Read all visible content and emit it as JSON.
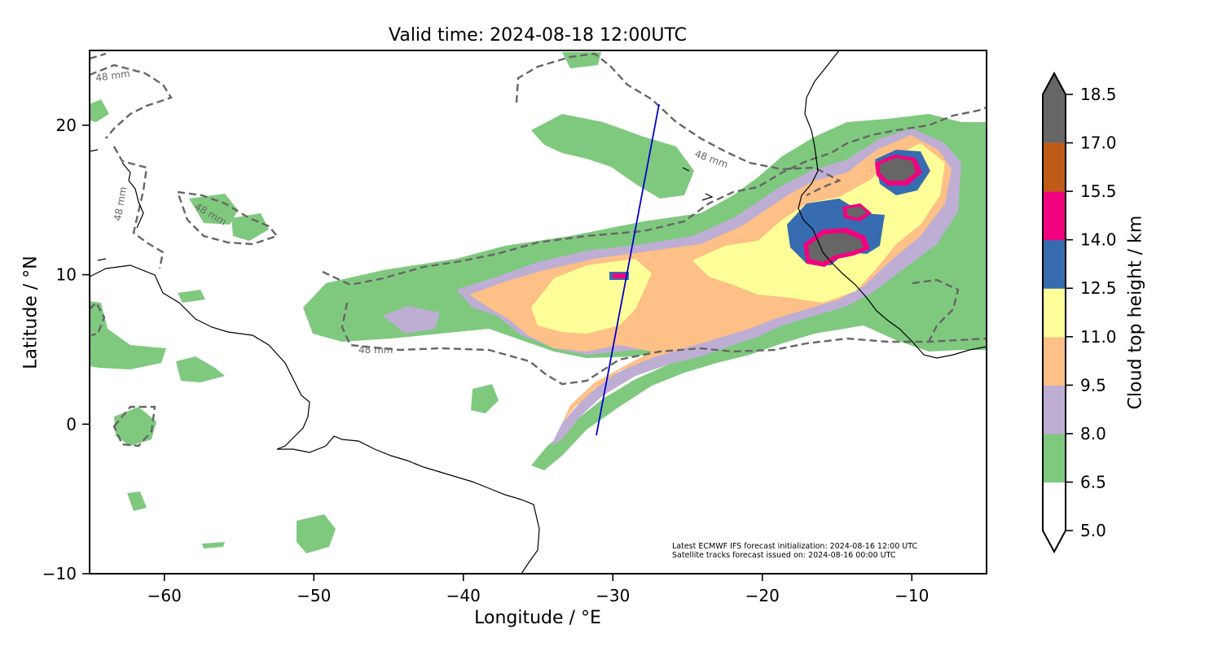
{
  "title": "Valid time: 2024-08-18 12:00UTC",
  "xlabel": "Longitude / °E",
  "ylabel": "Latitude / °N",
  "colorbar_label": "Cloud top height / km",
  "notes": {
    "line1": "Latest ECMWF IFS forecast initialization: 2024-08-16 12:00 UTC",
    "line2": "Satellite tracks forecast issued on: 2024-08-16 00:00 UTC"
  },
  "contour_label": "48 mm",
  "chart_data": {
    "type": "map",
    "title": "Valid time: 2024-08-18 12:00UTC",
    "xlabel": "Longitude / °E",
    "ylabel": "Latitude / °N",
    "xlim": [
      -65,
      -5
    ],
    "ylim": [
      -10,
      25
    ],
    "xticks": [
      -60,
      -50,
      -40,
      -30,
      -20,
      -10
    ],
    "yticks": [
      -10,
      0,
      10,
      20
    ],
    "xtick_labels": [
      "−60",
      "−50",
      "−40",
      "−30",
      "−20",
      "−10"
    ],
    "ytick_labels": [
      "−10",
      "0",
      "10",
      "20"
    ],
    "colorbar": {
      "label": "Cloud top height / km",
      "levels": [
        5.0,
        6.5,
        8.0,
        9.5,
        11.0,
        12.5,
        14.0,
        15.5,
        17.0,
        18.5
      ],
      "tick_labels": [
        "5.0",
        "6.5",
        "8.0",
        "9.5",
        "11.0",
        "12.5",
        "14.0",
        "15.5",
        "17.0",
        "18.5"
      ],
      "colors": [
        "#ffffff",
        "#7fc97f",
        "#beaed4",
        "#fdc086",
        "#ffff99",
        "#386cb0",
        "#f0027f",
        "#bf5b17",
        "#666666"
      ],
      "extend": "both"
    },
    "contour": {
      "label": "48 mm",
      "style": "dashed",
      "color": "#666666"
    },
    "satellite_track": {
      "color": "#0000cc",
      "start": [
        -31.1,
        -0.7
      ],
      "end": [
        -26.9,
        21.4
      ]
    }
  }
}
